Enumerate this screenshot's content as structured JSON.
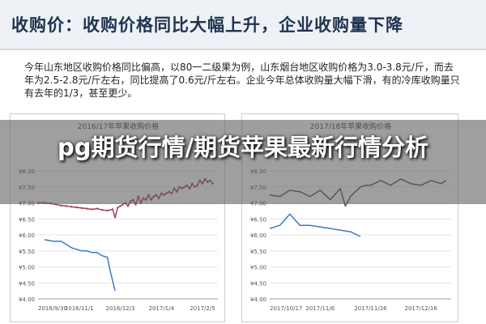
{
  "header": {
    "title": "收购价：收购价格同比大幅上升，企业收购量下降"
  },
  "body_text": "今年山东地区收购价格同比偏高，以80一二级果为例，山东烟台地区收购价格为3.0-3.8元/斤，而去年为2.5-2.8元/斤左右，同比提高了0.6元/斤左右。企业今年总体收购量大幅下滑，有的冷库收购量只有去年的1/3，甚至更少。",
  "banner": {
    "text": "pg期货行情/期货苹果最新行情分析"
  },
  "colors": {
    "red_series": "#a3414f",
    "dark_series": "#555555",
    "blue_series": "#3b7bbf",
    "header_bg": "#eef1f6",
    "grid": "#e6e6e6"
  },
  "chart_data": [
    {
      "type": "line",
      "title": "2016/17年苹果收购价格",
      "ylim": [
        4.0,
        8.0
      ],
      "y_ticks": [
        "¥4.00",
        "¥4.50",
        "¥5.00",
        "¥5.50",
        "¥6.00",
        "¥6.50",
        "¥7.00",
        "¥7.50",
        "¥8.00"
      ],
      "y_tick_values": [
        4.0,
        4.5,
        5.0,
        5.5,
        6.0,
        6.5,
        7.0,
        7.5,
        8.0
      ],
      "x_ticks": [
        "2016/9/30",
        "2016/11/1",
        "2016/12/3",
        "2017/1/4",
        "2017/2/5"
      ],
      "x_tick_values": [
        0,
        32,
        64,
        96,
        128
      ],
      "xlim": [
        0,
        140
      ],
      "series": [
        {
          "color_key": "red_series",
          "x": [
            0,
            5,
            10,
            14,
            18,
            22,
            26,
            30,
            34,
            38,
            42,
            46,
            50,
            54,
            58,
            60,
            62,
            64,
            66,
            68,
            70,
            72,
            74,
            76,
            78,
            80,
            82,
            84,
            86,
            88,
            90,
            92,
            94,
            96,
            98,
            100,
            102,
            104,
            106,
            108,
            110,
            112,
            114,
            116,
            118,
            120,
            122,
            124,
            126,
            128,
            130,
            132,
            134,
            136
          ],
          "y": [
            7.0,
            7.0,
            6.98,
            6.95,
            6.92,
            6.9,
            6.88,
            6.86,
            6.84,
            6.82,
            6.8,
            6.82,
            6.78,
            6.76,
            6.8,
            6.55,
            6.85,
            6.9,
            6.95,
            7.0,
            6.9,
            7.05,
            7.1,
            6.95,
            7.2,
            7.0,
            7.15,
            7.1,
            7.25,
            7.1,
            7.2,
            7.25,
            7.15,
            7.3,
            7.25,
            7.3,
            7.35,
            7.3,
            7.45,
            7.35,
            7.5,
            7.45,
            7.5,
            7.55,
            7.45,
            7.6,
            7.5,
            7.55,
            7.7,
            7.6,
            7.75,
            7.65,
            7.7,
            7.6
          ]
        },
        {
          "color_key": "blue_series",
          "x": [
            5,
            12,
            18,
            22,
            26,
            30,
            34,
            38,
            42,
            46,
            50,
            54,
            56,
            60
          ],
          "y": [
            5.85,
            5.8,
            5.8,
            5.7,
            5.6,
            5.55,
            5.5,
            5.5,
            5.45,
            5.45,
            5.35,
            5.3,
            4.9,
            4.25
          ]
        }
      ]
    },
    {
      "type": "line",
      "title": "2017/18年苹果收购价格",
      "ylim": [
        4.0,
        8.0
      ],
      "y_ticks": [
        "¥4.00",
        "¥4.50",
        "¥5.00",
        "¥5.50",
        "¥6.00",
        "¥6.50",
        "¥7.00",
        "¥7.50",
        "¥8.00"
      ],
      "y_tick_values": [
        4.0,
        4.5,
        5.0,
        5.5,
        6.0,
        6.5,
        7.0,
        7.5,
        8.0
      ],
      "x_ticks": [
        "2017/10/17",
        "2017/11/6",
        "2017/11/26",
        "2017/12/16"
      ],
      "x_tick_values": [
        0,
        20,
        40,
        60
      ],
      "xlim": [
        0,
        72
      ],
      "series": [
        {
          "color_key": "dark_series",
          "x": [
            0,
            4,
            8,
            12,
            16,
            20,
            24,
            28,
            30,
            32,
            34,
            36,
            38,
            40,
            44,
            48,
            52,
            56,
            60,
            64,
            68,
            70
          ],
          "y": [
            7.25,
            7.2,
            7.4,
            7.35,
            7.2,
            7.4,
            7.1,
            7.45,
            6.9,
            7.2,
            7.35,
            7.5,
            7.55,
            7.55,
            7.7,
            7.55,
            7.75,
            7.6,
            7.55,
            7.7,
            7.6,
            7.7
          ]
        },
        {
          "color_key": "blue_series",
          "x": [
            0,
            4,
            8,
            12,
            16,
            20,
            24,
            28,
            32,
            36
          ],
          "y": [
            6.2,
            6.3,
            6.65,
            6.3,
            6.3,
            6.25,
            6.2,
            6.15,
            6.1,
            5.95
          ]
        }
      ]
    }
  ]
}
